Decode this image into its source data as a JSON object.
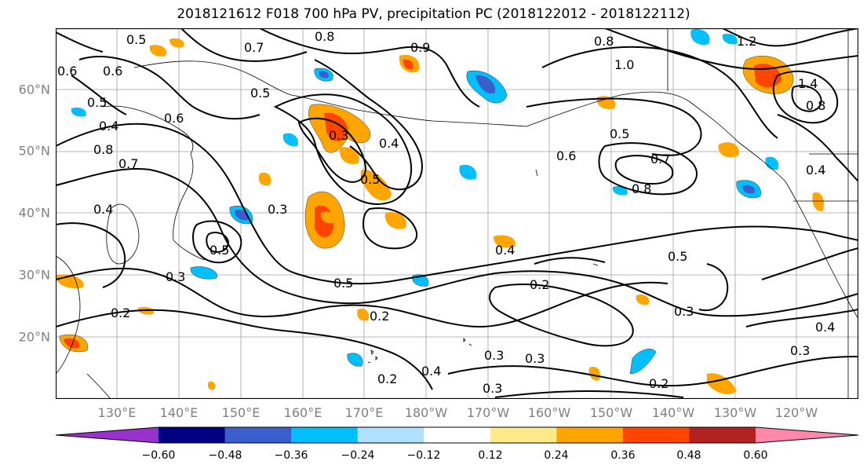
{
  "title": "2018121612 F018 700 hPa PV, precipitation PC (2018122012 - 2018122112)",
  "map": {
    "lat_labels": [
      "60°N",
      "50°N",
      "40°N",
      "30°N",
      "20°N"
    ],
    "lon_labels": [
      "130°E",
      "140°E",
      "150°E",
      "160°E",
      "170°E",
      "180°W",
      "170°W",
      "160°W",
      "150°W",
      "140°W",
      "130°W",
      "120°W"
    ],
    "contour_labels": [
      "0.6",
      "0.5",
      "0.7",
      "0.8",
      "0.9",
      "0.8",
      "1.0",
      "1.2",
      "1.4",
      "0.8",
      "0.6",
      "0.5",
      "0.4",
      "0.5",
      "0.6",
      "0.7",
      "0.8",
      "0.3",
      "0.5",
      "0.4",
      "0.3",
      "0.4",
      "0.5",
      "0.5",
      "0.2",
      "0.3",
      "0.2",
      "0.4",
      "0.3",
      "0.2",
      "0.3",
      "0.4",
      "0.5",
      "0.2",
      "0.4",
      "0.3",
      "0.8",
      "0.6",
      "0.7",
      "0.5",
      "0.4",
      "0.3",
      "0.2",
      "0.3"
    ]
  },
  "colorbar": {
    "labels": [
      "−0.60",
      "−0.48",
      "−0.36",
      "−0.24",
      "−0.12",
      "0.12",
      "0.24",
      "0.36",
      "0.48",
      "0.60"
    ],
    "colors": [
      "#9932cc",
      "#000080",
      "#3a5fcd",
      "#00bfff",
      "#b0e2ff",
      "#ffffff",
      "#fee98b",
      "#ffa500",
      "#ff4500",
      "#b22222",
      "#ff88aa"
    ]
  }
}
